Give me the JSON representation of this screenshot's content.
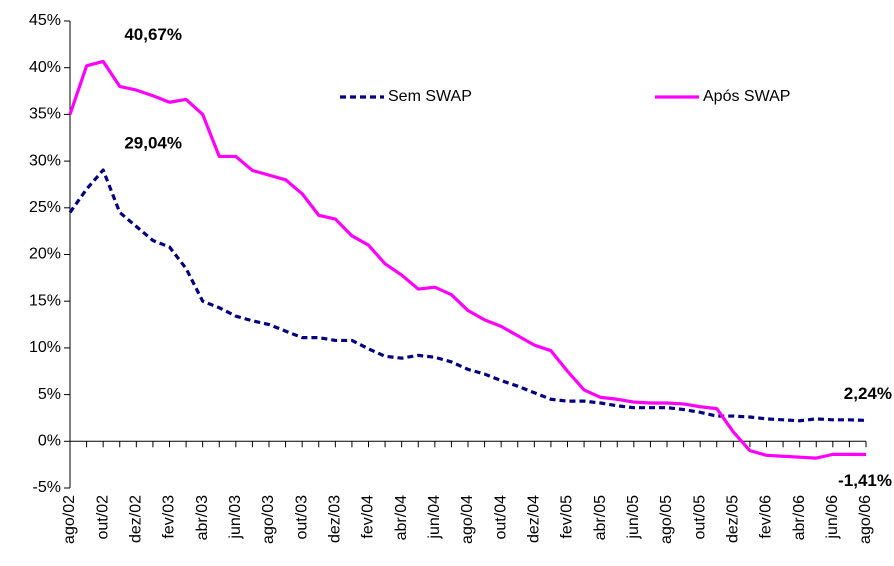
{
  "chart_data": {
    "type": "line",
    "categories": [
      "ago/02",
      null,
      "out/02",
      null,
      "dez/02",
      null,
      "fev/03",
      null,
      "abr/03",
      null,
      "jun/03",
      null,
      "ago/03",
      null,
      "out/03",
      null,
      "dez/03",
      null,
      "fev/04",
      null,
      "abr/04",
      null,
      "jun/04",
      null,
      "ago/04",
      null,
      "out/04",
      null,
      "dez/04",
      null,
      "fev/05",
      null,
      "abr/05",
      null,
      "jun/05",
      null,
      "ago/05",
      null,
      "out/05",
      null,
      "dez/05",
      null,
      "fev/06",
      null,
      "abr/06",
      null,
      "jun/06",
      null,
      "ago/06"
    ],
    "series": [
      {
        "name": "Sem SWAP",
        "color": "#000080",
        "dashed": true,
        "values": [
          24.5,
          27,
          29.04,
          24.5,
          23,
          21.5,
          20.8,
          18.5,
          15,
          14.3,
          13.4,
          12.9,
          12.5,
          11.8,
          11.1,
          11.1,
          10.8,
          10.8,
          9.9,
          9.1,
          8.9,
          9.2,
          9.0,
          8.5,
          7.7,
          7.2,
          6.5,
          5.9,
          5.2,
          4.5,
          4.3,
          4.3,
          4.1,
          3.8,
          3.6,
          3.6,
          3.6,
          3.4,
          3.1,
          2.7,
          2.7,
          2.6,
          2.4,
          2.3,
          2.2,
          2.4,
          2.3,
          2.3,
          2.24
        ],
        "value_labels": [
          null,
          null,
          "29,04%",
          null,
          null,
          null,
          null,
          null,
          null,
          null,
          null,
          null,
          null,
          null,
          null,
          null,
          null,
          null,
          null,
          null,
          null,
          null,
          null,
          null,
          null,
          null,
          null,
          null,
          null,
          null,
          null,
          null,
          null,
          null,
          null,
          null,
          null,
          null,
          null,
          null,
          null,
          null,
          null,
          null,
          null,
          null,
          null,
          null,
          "2,24%"
        ]
      },
      {
        "name": "Após SWAP",
        "color": "#ff00ff",
        "dashed": false,
        "values": [
          35,
          40.2,
          40.67,
          38,
          37.6,
          37,
          36.3,
          36.6,
          35,
          30.5,
          30.5,
          29,
          28.5,
          28,
          26.5,
          24.2,
          23.8,
          22,
          21,
          19,
          17.8,
          16.3,
          16.5,
          15.7,
          14,
          13,
          12.3,
          11.3,
          10.3,
          9.7,
          7.5,
          5.5,
          4.7,
          4.5,
          4.2,
          4.1,
          4.1,
          4.0,
          3.7,
          3.5,
          1,
          -1,
          -1.5,
          -1.6,
          -1.7,
          -1.8,
          -1.4,
          -1.4,
          -1.41
        ],
        "value_labels": [
          null,
          null,
          "40,67%",
          null,
          null,
          null,
          null,
          null,
          null,
          null,
          null,
          null,
          null,
          null,
          null,
          null,
          null,
          null,
          null,
          null,
          null,
          null,
          null,
          null,
          null,
          null,
          null,
          null,
          null,
          null,
          null,
          null,
          null,
          null,
          null,
          null,
          null,
          null,
          null,
          null,
          null,
          null,
          null,
          null,
          null,
          null,
          null,
          null,
          "-1,41%"
        ]
      }
    ],
    "ylim": [
      -5,
      45
    ],
    "yticks": [
      {
        "value": -5,
        "label": "-5%"
      },
      {
        "value": 0,
        "label": "0%"
      },
      {
        "value": 5,
        "label": "5%"
      },
      {
        "value": 10,
        "label": "10%"
      },
      {
        "value": 15,
        "label": "15%"
      },
      {
        "value": 20,
        "label": "20%"
      },
      {
        "value": 25,
        "label": "25%"
      },
      {
        "value": 30,
        "label": "30%"
      },
      {
        "value": 35,
        "label": "35%"
      },
      {
        "value": 40,
        "label": "40%"
      },
      {
        "value": 45,
        "label": "45%"
      }
    ],
    "grid": false,
    "legend": "top"
  }
}
